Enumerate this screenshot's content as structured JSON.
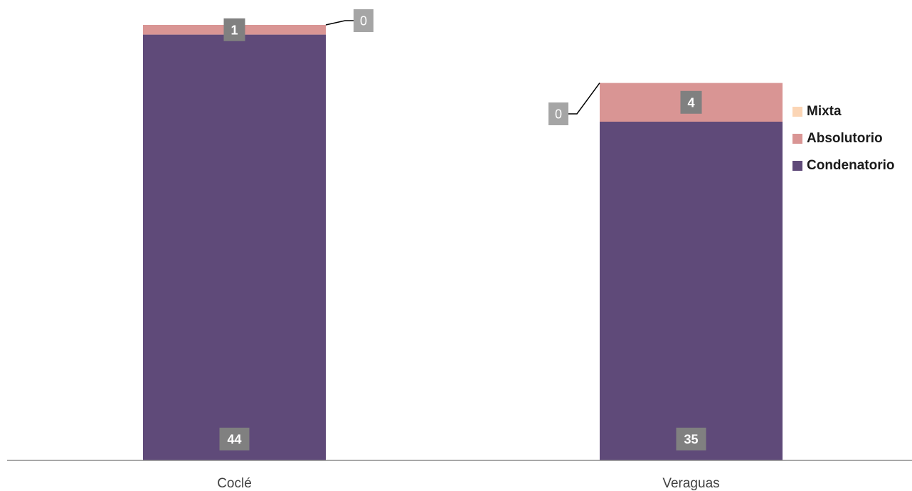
{
  "chart_data": {
    "type": "bar",
    "stacked": true,
    "categories": [
      "Coclé",
      "Veraguas"
    ],
    "series": [
      {
        "name": "Condenatorio",
        "values": [
          44,
          35
        ],
        "color": "#5f4a79"
      },
      {
        "name": "Absolutorio",
        "values": [
          1,
          4
        ],
        "color": "#d99594"
      },
      {
        "name": "Mixta",
        "values": [
          0,
          0
        ],
        "color": "#fbd5b5"
      }
    ],
    "ylim": [
      0,
      47
    ],
    "grid": false,
    "legend_position": "right",
    "data_label_color": "#808080",
    "data_label_color_light": "#a5a5a5"
  },
  "legend": {
    "items": [
      {
        "label": "Mixta",
        "color": "#fbd5b5"
      },
      {
        "label": "Absolutorio",
        "color": "#d99594"
      },
      {
        "label": "Condenatorio",
        "color": "#5f4a79"
      }
    ]
  }
}
